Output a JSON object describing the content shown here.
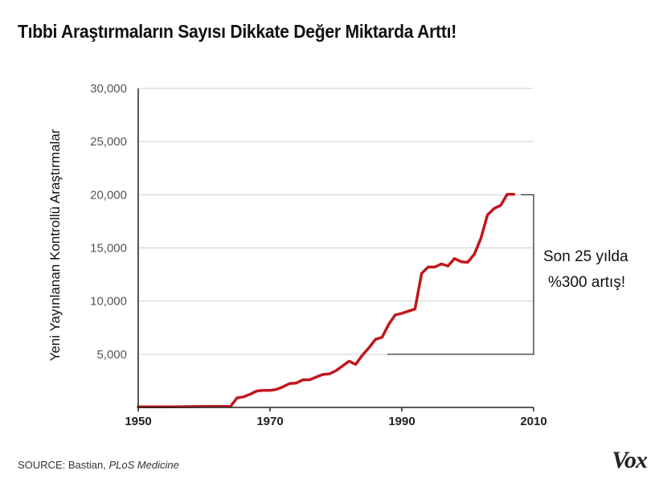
{
  "header": {
    "title": "Tıbbi Araştırmaların Sayısı Dikkate Değer Miktarda Arttı!"
  },
  "footer": {
    "source_prefix": "SOURCE: Bastian, ",
    "source_italic": "PLoS Medicine",
    "logo": "Vox"
  },
  "chart_data": {
    "type": "line",
    "title": "Tıbbi Araştırmaların Sayısı Dikkate Değer Miktarda Arttı!",
    "xlabel": "",
    "ylabel": "Yeni Yayınlanan Kontrollü Araştırmalar",
    "xlim": [
      1950,
      2010
    ],
    "ylim": [
      0,
      30000
    ],
    "x_ticks": [
      1950,
      1970,
      1990,
      2010
    ],
    "x_tick_labels": [
      "1950",
      "1970",
      "1990",
      "2010"
    ],
    "y_ticks": [
      5000,
      10000,
      15000,
      20000,
      25000,
      30000
    ],
    "y_tick_labels": [
      "5,000",
      "10,000",
      "15,000",
      "20,000",
      "25,000",
      "30,000"
    ],
    "grid": true,
    "line_color": "#c0181e",
    "series": [
      {
        "x": [
          1950,
          1955,
          1960,
          1964,
          1965,
          1966,
          1967,
          1968,
          1969,
          1970,
          1971,
          1972,
          1973,
          1974,
          1975,
          1976,
          1977,
          1978,
          1979,
          1980,
          1981,
          1982,
          1983,
          1984,
          1985,
          1986,
          1987,
          1988,
          1989,
          1990,
          1991,
          1992,
          1993,
          1994,
          1995,
          1996,
          1997,
          1998,
          1999,
          2000,
          2001,
          2002,
          2003,
          2004,
          2005,
          2006,
          2007
        ],
        "y": [
          50,
          50,
          100,
          100,
          900,
          1000,
          1250,
          1550,
          1600,
          1600,
          1700,
          1950,
          2250,
          2300,
          2600,
          2600,
          2850,
          3100,
          3150,
          3450,
          3900,
          4350,
          4050,
          4900,
          5600,
          6400,
          6600,
          7800,
          8700,
          8850,
          9050,
          9250,
          12600,
          13200,
          13200,
          13500,
          13300,
          14000,
          13700,
          13650,
          14400,
          15900,
          18100,
          18700,
          19000,
          20050,
          20050
        ]
      }
    ],
    "annotation": {
      "lines": [
        "Son 25 yılda",
        "%300 artış!"
      ],
      "from_value": 5000,
      "to_value": 20000
    }
  }
}
